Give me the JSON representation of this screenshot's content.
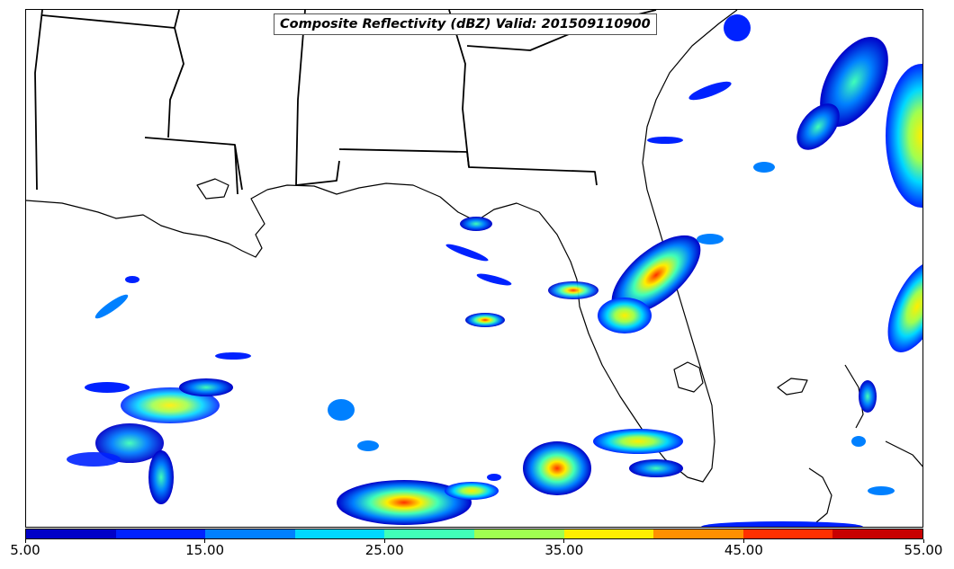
{
  "title": "Composite Reflectivity (dBZ) Valid: 201509110900",
  "colorbar": {
    "colors": [
      "#0000c8",
      "#0022ff",
      "#0080ff",
      "#00d8ff",
      "#40ffb8",
      "#a0ff50",
      "#ffee00",
      "#ff9000",
      "#ff3000",
      "#c80000"
    ],
    "tick_labels": [
      "5.00",
      "15.00",
      "25.00",
      "35.00",
      "45.00",
      "55.00"
    ],
    "min": 5,
    "max": 55
  },
  "map": {
    "region": "Gulf of Mexico / Southeast United States",
    "features": [
      "state-borders",
      "coastlines",
      "radar-reflectivity-echoes"
    ]
  }
}
